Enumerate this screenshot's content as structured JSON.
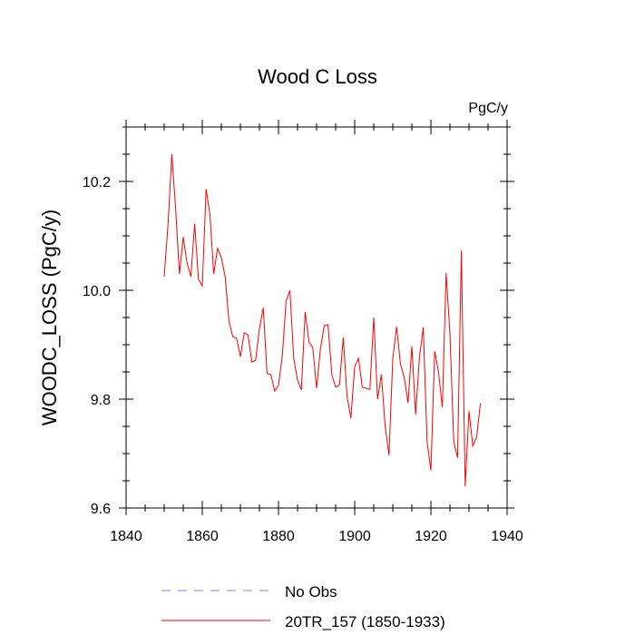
{
  "chart_data": {
    "type": "line",
    "title": "Wood C Loss",
    "units": "PgC/y",
    "xlabel": "",
    "ylabel": "WOODC_LOSS  (PgC/y)",
    "xlim": [
      1840,
      1940
    ],
    "ylim": [
      9.6,
      10.3
    ],
    "x_ticks": [
      1840,
      1860,
      1880,
      1900,
      1920,
      1940
    ],
    "x_tick_labels": [
      "1840",
      "1860",
      "1880",
      "1900",
      "1920",
      "1940"
    ],
    "y_ticks": [
      9.6,
      9.8,
      10.0,
      10.2
    ],
    "y_tick_labels": [
      "9.6",
      "9.8",
      "10.0",
      "10.2"
    ],
    "grid": false,
    "legend": [
      {
        "label": "No Obs",
        "color": "#7f7fff",
        "style": "dashed"
      },
      {
        "label": "20TR_157 (1850-1933)",
        "color": "#ff0000",
        "style": "solid"
      }
    ],
    "series": [
      {
        "name": "No Obs",
        "color": "#7f7fff",
        "x": [],
        "values": []
      },
      {
        "name": "20TR_157 (1850-1933)",
        "color": "#ff0000",
        "x": [
          1850,
          1851,
          1852,
          1853,
          1854,
          1855,
          1856,
          1857,
          1858,
          1859,
          1860,
          1861,
          1862,
          1863,
          1864,
          1865,
          1866,
          1867,
          1868,
          1869,
          1870,
          1871,
          1872,
          1873,
          1874,
          1875,
          1876,
          1877,
          1878,
          1879,
          1880,
          1881,
          1882,
          1883,
          1884,
          1885,
          1886,
          1887,
          1888,
          1889,
          1890,
          1891,
          1892,
          1893,
          1894,
          1895,
          1896,
          1897,
          1898,
          1899,
          1900,
          1901,
          1902,
          1903,
          1904,
          1905,
          1906,
          1907,
          1908,
          1909,
          1910,
          1911,
          1912,
          1913,
          1914,
          1915,
          1916,
          1917,
          1918,
          1919,
          1920,
          1921,
          1922,
          1923,
          1924,
          1925,
          1926,
          1927,
          1928,
          1929,
          1930,
          1931,
          1932,
          1933
        ],
        "values": [
          10.025,
          10.12,
          10.25,
          10.15,
          10.03,
          10.098,
          10.05,
          10.025,
          10.122,
          10.02,
          10.008,
          10.186,
          10.14,
          10.03,
          10.077,
          10.06,
          10.025,
          9.943,
          9.915,
          9.912,
          9.878,
          9.922,
          9.918,
          9.868,
          9.872,
          9.93,
          9.968,
          9.847,
          9.845,
          9.815,
          9.825,
          9.88,
          9.98,
          10.0,
          9.875,
          9.835,
          9.817,
          9.96,
          9.905,
          9.895,
          9.82,
          9.892,
          9.935,
          9.937,
          9.845,
          9.822,
          9.826,
          9.913,
          9.805,
          9.765,
          9.86,
          9.875,
          9.822,
          9.82,
          9.818,
          9.95,
          9.8,
          9.845,
          9.75,
          9.697,
          9.875,
          9.933,
          9.865,
          9.84,
          9.793,
          9.897,
          9.772,
          9.877,
          9.932,
          9.722,
          9.669,
          9.888,
          9.85,
          9.785,
          10.032,
          9.92,
          9.722,
          9.692,
          10.073,
          9.64,
          9.778,
          9.714,
          9.73,
          9.792
        ]
      }
    ]
  }
}
